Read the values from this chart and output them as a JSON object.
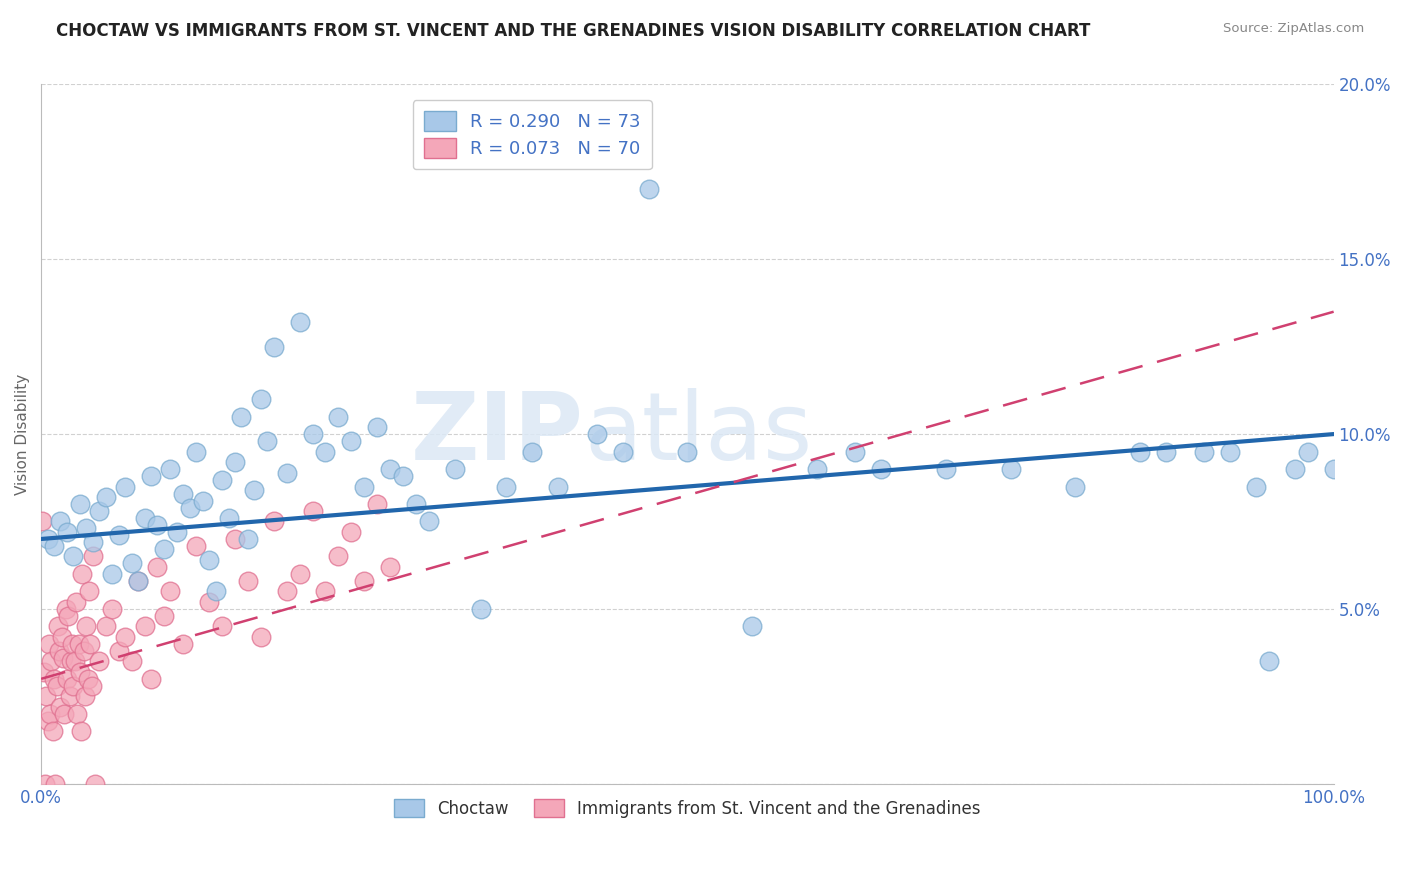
{
  "title": "CHOCTAW VS IMMIGRANTS FROM ST. VINCENT AND THE GRENADINES VISION DISABILITY CORRELATION CHART",
  "source": "Source: ZipAtlas.com",
  "ylabel": "Vision Disability",
  "xlim": [
    0,
    100
  ],
  "ylim": [
    0,
    20
  ],
  "legend_r1": "R = 0.290",
  "legend_n1": "N = 73",
  "legend_r2": "R = 0.073",
  "legend_n2": "N = 70",
  "legend_label1": "Choctaw",
  "legend_label2": "Immigrants from St. Vincent and the Grenadines",
  "color_blue": "#a8c8e8",
  "color_blue_edge": "#7aabcf",
  "color_blue_line": "#2166ac",
  "color_pink": "#f4a7b9",
  "color_pink_edge": "#e07090",
  "color_pink_line": "#d04070",
  "color_axis_text": "#4472C4",
  "background_color": "#ffffff",
  "grid_color": "#cccccc",
  "choctaw_x": [
    0.5,
    1.0,
    1.5,
    2.0,
    2.5,
    3.0,
    3.5,
    4.0,
    4.5,
    5.0,
    5.5,
    6.0,
    6.5,
    7.0,
    7.5,
    8.0,
    8.5,
    9.0,
    9.5,
    10.0,
    10.5,
    11.0,
    11.5,
    12.0,
    12.5,
    13.0,
    13.5,
    14.0,
    14.5,
    15.0,
    15.5,
    16.0,
    16.5,
    17.0,
    17.5,
    18.0,
    19.0,
    20.0,
    21.0,
    22.0,
    23.0,
    24.0,
    25.0,
    26.0,
    27.0,
    28.0,
    29.0,
    30.0,
    32.0,
    34.0,
    36.0,
    38.0,
    40.0,
    43.0,
    45.0,
    47.0,
    50.0,
    55.0,
    60.0,
    63.0,
    65.0,
    70.0,
    75.0,
    80.0,
    85.0,
    87.0,
    90.0,
    92.0,
    94.0,
    95.0,
    97.0,
    98.0,
    100.0
  ],
  "choctaw_y": [
    7.0,
    6.8,
    7.5,
    7.2,
    6.5,
    8.0,
    7.3,
    6.9,
    7.8,
    8.2,
    6.0,
    7.1,
    8.5,
    6.3,
    5.8,
    7.6,
    8.8,
    7.4,
    6.7,
    9.0,
    7.2,
    8.3,
    7.9,
    9.5,
    8.1,
    6.4,
    5.5,
    8.7,
    7.6,
    9.2,
    10.5,
    7.0,
    8.4,
    11.0,
    9.8,
    12.5,
    8.9,
    13.2,
    10.0,
    9.5,
    10.5,
    9.8,
    8.5,
    10.2,
    9.0,
    8.8,
    8.0,
    7.5,
    9.0,
    5.0,
    8.5,
    9.5,
    8.5,
    10.0,
    9.5,
    17.0,
    9.5,
    4.5,
    9.0,
    9.5,
    9.0,
    9.0,
    9.0,
    8.5,
    9.5,
    9.5,
    9.5,
    9.5,
    8.5,
    3.5,
    9.0,
    9.5,
    9.0
  ],
  "immigrant_x": [
    0.1,
    0.2,
    0.3,
    0.4,
    0.5,
    0.6,
    0.7,
    0.8,
    0.9,
    1.0,
    1.1,
    1.2,
    1.3,
    1.4,
    1.5,
    1.6,
    1.7,
    1.8,
    1.9,
    2.0,
    2.1,
    2.2,
    2.3,
    2.4,
    2.5,
    2.6,
    2.7,
    2.8,
    2.9,
    3.0,
    3.1,
    3.2,
    3.3,
    3.4,
    3.5,
    3.6,
    3.7,
    3.8,
    3.9,
    4.0,
    4.2,
    4.5,
    5.0,
    5.5,
    6.0,
    6.5,
    7.0,
    7.5,
    8.0,
    8.5,
    9.0,
    9.5,
    10.0,
    11.0,
    12.0,
    13.0,
    14.0,
    15.0,
    16.0,
    17.0,
    18.0,
    19.0,
    20.0,
    21.0,
    22.0,
    23.0,
    24.0,
    25.0,
    26.0,
    27.0
  ],
  "immigrant_y": [
    7.5,
    3.2,
    0.0,
    2.5,
    1.8,
    4.0,
    2.0,
    3.5,
    1.5,
    3.0,
    0.0,
    2.8,
    4.5,
    3.8,
    2.2,
    4.2,
    3.6,
    2.0,
    5.0,
    3.0,
    4.8,
    2.5,
    3.5,
    4.0,
    2.8,
    3.5,
    5.2,
    2.0,
    4.0,
    3.2,
    1.5,
    6.0,
    3.8,
    2.5,
    4.5,
    3.0,
    5.5,
    4.0,
    2.8,
    6.5,
    0.0,
    3.5,
    4.5,
    5.0,
    3.8,
    4.2,
    3.5,
    5.8,
    4.5,
    3.0,
    6.2,
    4.8,
    5.5,
    4.0,
    6.8,
    5.2,
    4.5,
    7.0,
    5.8,
    4.2,
    7.5,
    5.5,
    6.0,
    7.8,
    5.5,
    6.5,
    7.2,
    5.8,
    8.0,
    6.2
  ],
  "blue_line_x0": 0,
  "blue_line_y0": 7.0,
  "blue_line_x1": 100,
  "blue_line_y1": 10.0,
  "pink_line_x0": 0,
  "pink_line_y0": 3.0,
  "pink_line_x1": 100,
  "pink_line_y1": 13.5
}
